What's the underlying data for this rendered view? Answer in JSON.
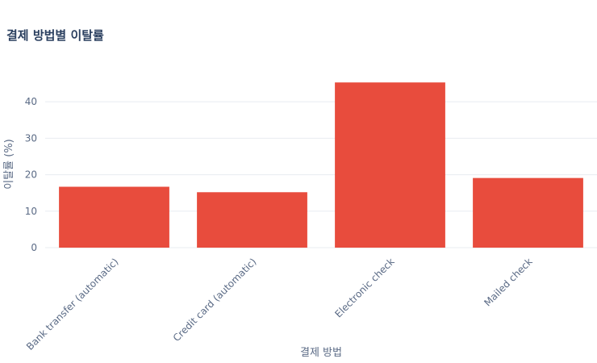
{
  "chart_data": {
    "type": "bar",
    "title": "결제 방법별 이탈률",
    "xlabel": "결제 방법",
    "ylabel": "이탈률 (%)",
    "categories": [
      "Bank transfer (automatic)",
      "Credit card (automatic)",
      "Electronic check",
      "Mailed check"
    ],
    "values": [
      16.7,
      15.2,
      45.3,
      19.1
    ],
    "ylim": [
      0,
      48
    ],
    "yticks": [
      0,
      10,
      20,
      30,
      40
    ],
    "grid": true,
    "bar_color": "#e84c3d",
    "grid_color": "#e8ecf1",
    "text_color": "#5a6a85"
  }
}
